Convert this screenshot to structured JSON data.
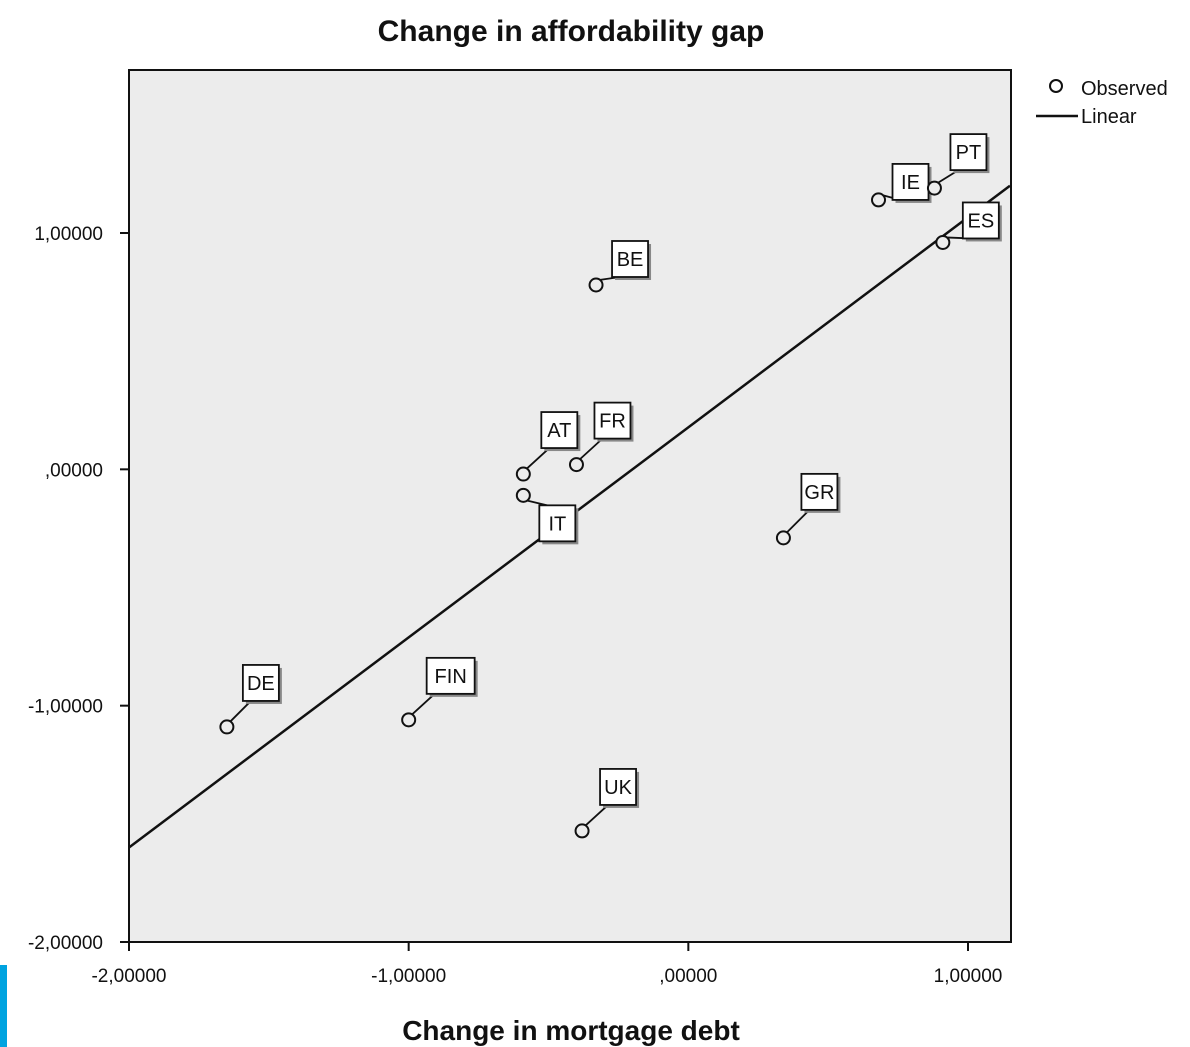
{
  "chart_data": {
    "type": "scatter",
    "title": "Change in affordability gap",
    "xlabel": "Change in mortgage debt",
    "ylabel": "",
    "xlim": [
      -2.0,
      1.15
    ],
    "ylim": [
      -2.0,
      1.7
    ],
    "x_ticks": [
      {
        "value": -2.0,
        "label": "-2,00000"
      },
      {
        "value": -1.0,
        "label": "-1,00000"
      },
      {
        "value": 0.0,
        "label": ",00000"
      },
      {
        "value": 1.0,
        "label": "1,00000"
      }
    ],
    "y_ticks": [
      {
        "value": -2.0,
        "label": "-2,00000"
      },
      {
        "value": -1.0,
        "label": "-1,00000"
      },
      {
        "value": 0.0,
        "label": ",00000"
      },
      {
        "value": 1.0,
        "label": "1,00000"
      }
    ],
    "grid": false,
    "legend_position": "outside top-right",
    "legend": [
      {
        "name": "Observed",
        "marker": "circle"
      },
      {
        "name": "Linear",
        "marker": "line"
      }
    ],
    "points": [
      {
        "label": "DE",
        "x": -1.65,
        "y": -1.09
      },
      {
        "label": "FIN",
        "x": -1.0,
        "y": -1.06
      },
      {
        "label": "UK",
        "x": -0.38,
        "y": -1.53
      },
      {
        "label": "AT",
        "x": -0.59,
        "y": -0.02
      },
      {
        "label": "IT",
        "x": -0.59,
        "y": -0.11
      },
      {
        "label": "FR",
        "x": -0.4,
        "y": 0.02
      },
      {
        "label": "BE",
        "x": -0.33,
        "y": 0.78
      },
      {
        "label": "GR",
        "x": 0.34,
        "y": -0.29
      },
      {
        "label": "IE",
        "x": 0.68,
        "y": 1.14
      },
      {
        "label": "PT",
        "x": 0.88,
        "y": 1.19
      },
      {
        "label": "ES",
        "x": 0.91,
        "y": 0.96
      }
    ],
    "fit_line": {
      "name": "Linear",
      "x": [
        -2.0,
        1.15
      ],
      "y": [
        -1.6,
        1.2
      ]
    },
    "colors": {
      "plot_background": "#ececec",
      "marker": "#111111",
      "line": "#111111",
      "accent": "#00a3e0"
    }
  }
}
